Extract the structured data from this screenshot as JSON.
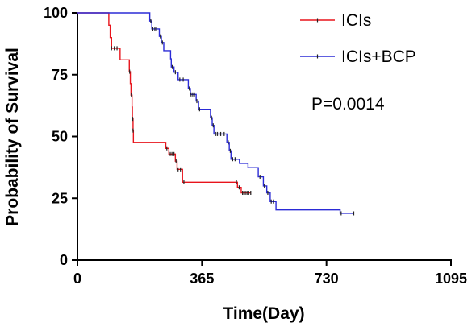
{
  "chart_data": {
    "type": "line",
    "title": "",
    "xlabel": "Time(Day)",
    "ylabel": "Probability of Survival",
    "xlim": [
      0,
      1095
    ],
    "ylim": [
      0,
      100
    ],
    "x_ticks": [
      "0",
      "365",
      "730",
      "1095"
    ],
    "y_ticks": [
      "0",
      "25",
      "50",
      "75",
      "100"
    ],
    "legend_position": "top-right",
    "annotation": "P=0.0014",
    "series": [
      {
        "name": "ICIs",
        "color": "#e8141c",
        "points": [
          [
            0,
            100
          ],
          [
            92,
            100
          ],
          [
            92,
            95
          ],
          [
            96,
            95
          ],
          [
            96,
            90
          ],
          [
            100,
            90
          ],
          [
            100,
            85.7
          ],
          [
            125,
            85.7
          ],
          [
            125,
            81
          ],
          [
            152,
            81
          ],
          [
            152,
            76.2
          ],
          [
            155,
            76.2
          ],
          [
            155,
            71.4
          ],
          [
            157,
            71.4
          ],
          [
            157,
            66.7
          ],
          [
            160,
            66.7
          ],
          [
            160,
            61.9
          ],
          [
            161,
            61.9
          ],
          [
            161,
            57.1
          ],
          [
            163,
            57.1
          ],
          [
            163,
            52.4
          ],
          [
            164,
            52.4
          ],
          [
            164,
            47.6
          ],
          [
            259,
            47.6
          ],
          [
            259,
            45.2
          ],
          [
            268,
            45.2
          ],
          [
            268,
            42.9
          ],
          [
            287,
            42.9
          ],
          [
            287,
            40
          ],
          [
            292,
            40
          ],
          [
            292,
            36.7
          ],
          [
            308,
            36.7
          ],
          [
            308,
            31.5
          ],
          [
            469,
            31.5
          ],
          [
            469,
            29.4
          ],
          [
            480,
            29.4
          ],
          [
            480,
            27.2
          ],
          [
            508,
            27.2
          ]
        ],
        "censored": [
          [
            100,
            85.7
          ],
          [
            108,
            85.7
          ],
          [
            116,
            85.7
          ],
          [
            153,
            76.2
          ],
          [
            158,
            66.7
          ],
          [
            162,
            57.1
          ],
          [
            163,
            52.4
          ],
          [
            262,
            45.2
          ],
          [
            272,
            42.9
          ],
          [
            277,
            42.9
          ],
          [
            283,
            42.9
          ],
          [
            289,
            40
          ],
          [
            295,
            36.7
          ],
          [
            302,
            36.7
          ],
          [
            312,
            31.5
          ],
          [
            466,
            31.5
          ],
          [
            474,
            29.4
          ],
          [
            484,
            27.2
          ],
          [
            488,
            27.2
          ],
          [
            492,
            27.2
          ],
          [
            497,
            27.2
          ],
          [
            502,
            27.2
          ],
          [
            508,
            27.2
          ]
        ]
      },
      {
        "name": "ICIs+BCP",
        "color": "#2b2bd6",
        "points": [
          [
            0,
            100
          ],
          [
            212,
            100
          ],
          [
            212,
            96.7
          ],
          [
            218,
            96.7
          ],
          [
            218,
            93.5
          ],
          [
            240,
            93.5
          ],
          [
            240,
            90.5
          ],
          [
            246,
            90.5
          ],
          [
            246,
            88
          ],
          [
            253,
            88
          ],
          [
            253,
            84.7
          ],
          [
            273,
            84.7
          ],
          [
            273,
            81.4
          ],
          [
            275,
            81.4
          ],
          [
            275,
            78.1
          ],
          [
            283,
            78.1
          ],
          [
            283,
            76
          ],
          [
            295,
            76
          ],
          [
            295,
            73
          ],
          [
            325,
            73
          ],
          [
            325,
            69.4
          ],
          [
            331,
            69.4
          ],
          [
            331,
            67
          ],
          [
            348,
            67
          ],
          [
            348,
            64.3
          ],
          [
            355,
            64.3
          ],
          [
            355,
            61
          ],
          [
            390,
            61
          ],
          [
            390,
            57.6
          ],
          [
            395,
            57.6
          ],
          [
            395,
            54.5
          ],
          [
            400,
            54.5
          ],
          [
            400,
            51
          ],
          [
            438,
            51
          ],
          [
            438,
            47.6
          ],
          [
            445,
            47.6
          ],
          [
            445,
            44.2
          ],
          [
            450,
            44.2
          ],
          [
            450,
            40.8
          ],
          [
            475,
            40.8
          ],
          [
            475,
            39.1
          ],
          [
            500,
            39.1
          ],
          [
            500,
            37.4
          ],
          [
            530,
            37.4
          ],
          [
            530,
            33.7
          ],
          [
            545,
            33.7
          ],
          [
            545,
            30
          ],
          [
            555,
            30
          ],
          [
            555,
            27.2
          ],
          [
            565,
            27.2
          ],
          [
            565,
            23.7
          ],
          [
            582,
            23.7
          ],
          [
            582,
            20.3
          ],
          [
            770,
            20.3
          ],
          [
            770,
            18.9
          ],
          [
            810,
            18.9
          ]
        ],
        "censored": [
          [
            215,
            96.7
          ],
          [
            221,
            93.5
          ],
          [
            227,
            93.5
          ],
          [
            232,
            93.5
          ],
          [
            243,
            90.5
          ],
          [
            249,
            88
          ],
          [
            278,
            78.1
          ],
          [
            287,
            76
          ],
          [
            300,
            73
          ],
          [
            310,
            73
          ],
          [
            328,
            69.4
          ],
          [
            333,
            67
          ],
          [
            338,
            67
          ],
          [
            343,
            67
          ],
          [
            350,
            64.3
          ],
          [
            358,
            61
          ],
          [
            393,
            57.6
          ],
          [
            398,
            54.5
          ],
          [
            405,
            51
          ],
          [
            410,
            51
          ],
          [
            415,
            51
          ],
          [
            420,
            51
          ],
          [
            430,
            51
          ],
          [
            442,
            47.6
          ],
          [
            448,
            44.2
          ],
          [
            455,
            40.8
          ],
          [
            462,
            40.8
          ],
          [
            535,
            33.7
          ],
          [
            548,
            30
          ],
          [
            558,
            27.2
          ],
          [
            568,
            23.7
          ],
          [
            575,
            23.7
          ],
          [
            773,
            18.9
          ],
          [
            810,
            18.9
          ]
        ]
      }
    ]
  }
}
